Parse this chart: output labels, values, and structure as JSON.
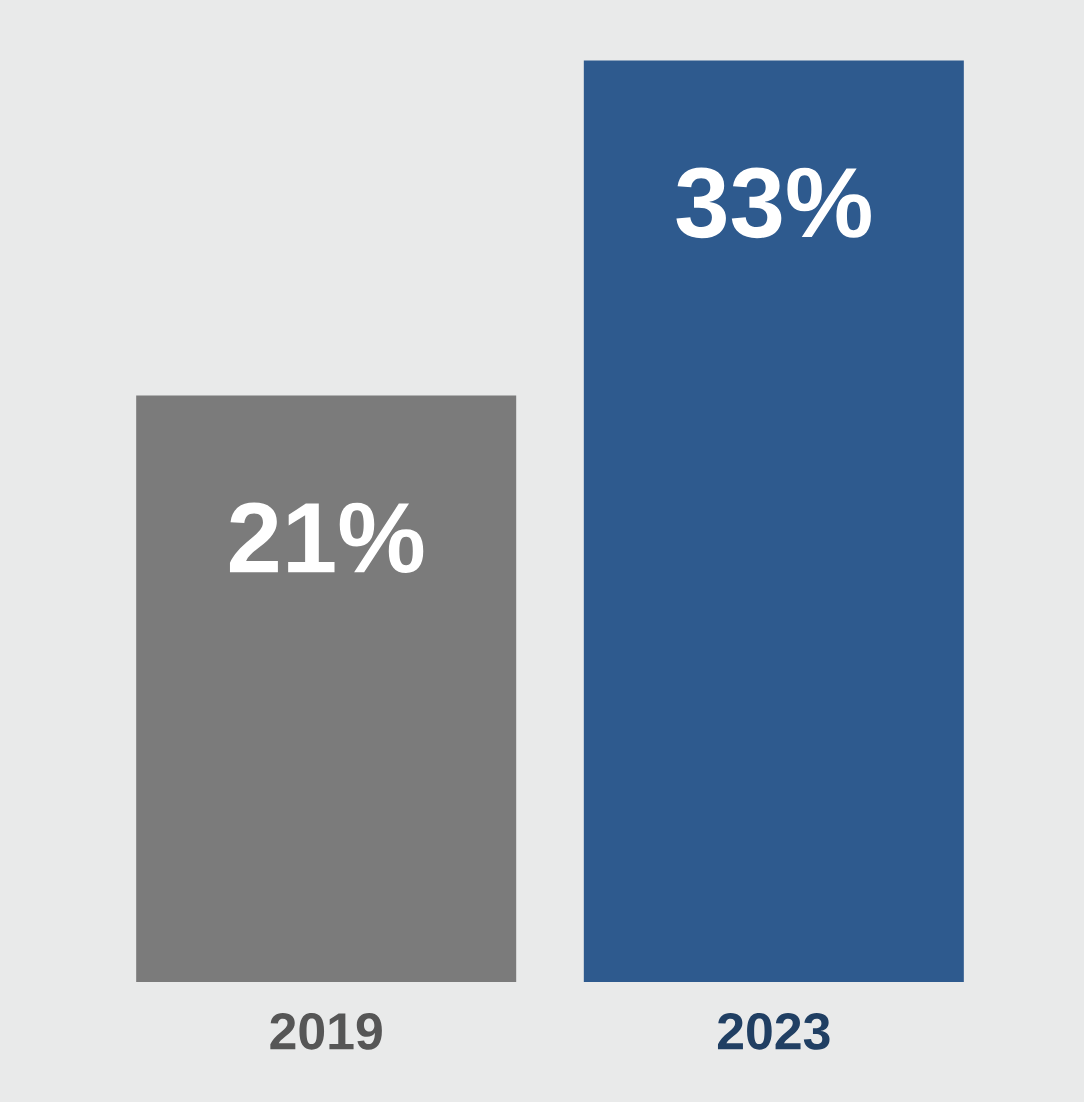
{
  "chart_data": {
    "type": "bar",
    "categories": [
      "2019",
      "2023"
    ],
    "values": [
      21,
      33
    ],
    "colors": [
      "#7b7b7b",
      "#2e5a8e"
    ],
    "value_labels": [
      "21%",
      "33%"
    ]
  }
}
